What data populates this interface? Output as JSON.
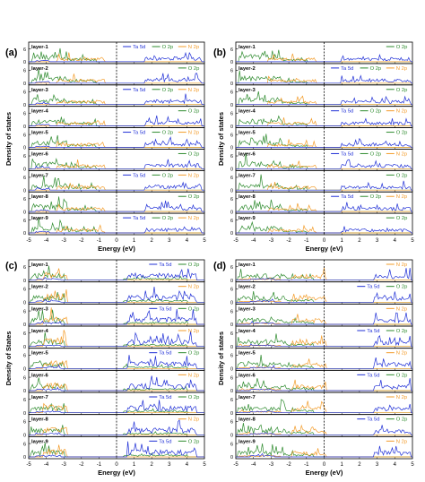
{
  "figure": {
    "description_panels": [
      "(a)",
      "(b)",
      "(c)",
      "(d)"
    ]
  },
  "colors": {
    "ta5d": "#1f2fd6",
    "o2p": "#2e8b2e",
    "n2p": "#f39c2a",
    "axis": "#000000"
  },
  "chart_data": [
    {
      "type": "line",
      "panel_label": "(a)",
      "xlabel": "Energy (eV)",
      "ylabel": "Density of states",
      "xlim": [
        -5,
        5
      ],
      "xticks": [
        -5,
        -4,
        -3,
        -2,
        -1,
        0,
        1,
        2,
        3,
        4,
        5
      ],
      "yticks_per_layer": [
        0,
        6
      ],
      "fermi_level_dashed": 0,
      "layers": [
        {
          "name": "layer-1",
          "legend": [
            "Ta 5d",
            "O 2p",
            "N 2p"
          ]
        },
        {
          "name": "layer-2",
          "legend": [
            "O 2p"
          ]
        },
        {
          "name": "layer-3",
          "legend": [
            "Ta 5d",
            "O 2p",
            "N 2p"
          ]
        },
        {
          "name": "layer-4",
          "legend": [
            "O 2p"
          ]
        },
        {
          "name": "layer-5",
          "legend": [
            "Ta 5d",
            "O 2p",
            "N 2p"
          ]
        },
        {
          "name": "layer-6",
          "legend": [
            "O 2p"
          ]
        },
        {
          "name": "layer-7",
          "legend": [
            "Ta 5d",
            "O 2p",
            "N 2p"
          ]
        },
        {
          "name": "layer-8",
          "legend": [
            "O 2p"
          ]
        },
        {
          "name": "layer-9",
          "legend": [
            "Ta 5d",
            "O 2p",
            "N 2p"
          ]
        }
      ]
    },
    {
      "type": "line",
      "panel_label": "(b)",
      "xlabel": "Energy (eV)",
      "ylabel": "Density of states",
      "xlim": [
        -5,
        5
      ],
      "xticks": [
        -5,
        -4,
        -3,
        -2,
        -1,
        0,
        1,
        2,
        3,
        4,
        5
      ],
      "yticks_per_layer": [
        0,
        6
      ],
      "fermi_level_dashed": 0,
      "layers": [
        {
          "name": "layer-1",
          "legend": [
            "O 2p"
          ]
        },
        {
          "name": "layer-2",
          "legend": [
            "Ta 5d",
            "O 2p",
            "N 2p"
          ]
        },
        {
          "name": "layer-3",
          "legend": [
            "O 2p"
          ]
        },
        {
          "name": "layer-4",
          "legend": [
            "Ta 5d",
            "O 2p",
            "N 2p"
          ]
        },
        {
          "name": "layer-5",
          "legend": [
            "O 2p"
          ]
        },
        {
          "name": "layer-6",
          "legend": [
            "Ta 5d",
            "O 2p",
            "N 2p"
          ]
        },
        {
          "name": "layer-7",
          "legend": [
            "O 2p"
          ]
        },
        {
          "name": "layer-8",
          "legend": [
            "Ta 5d",
            "O 2p",
            "N 2p"
          ]
        },
        {
          "name": "layer-9",
          "legend": [
            "O 2p"
          ]
        }
      ]
    },
    {
      "type": "line",
      "panel_label": "(c)",
      "xlabel": "Energy (eV)",
      "ylabel": "Density of States",
      "xlim": [
        -5,
        5
      ],
      "xticks": [
        -5,
        -4,
        -3,
        -2,
        -1,
        0,
        1,
        2,
        3,
        4,
        5
      ],
      "yticks_per_layer": [
        0,
        6
      ],
      "fermi_level_dashed": 0,
      "layers": [
        {
          "name": "layer-1",
          "legend": [
            "Ta 5d",
            "O 2p"
          ]
        },
        {
          "name": "layer-2",
          "legend": [
            "N 2p"
          ]
        },
        {
          "name": "layer-3",
          "legend": [
            "Ta 5d",
            "O 2p"
          ]
        },
        {
          "name": "layer-4",
          "legend": [
            "N 2p"
          ]
        },
        {
          "name": "layer-5",
          "legend": [
            "Ta 5d",
            "O 2p"
          ]
        },
        {
          "name": "layer-6",
          "legend": [
            "N 2p"
          ]
        },
        {
          "name": "layer-7",
          "legend": [
            "Ta 5d",
            "O 2p"
          ]
        },
        {
          "name": "layer-8",
          "legend": [
            "N 2p"
          ]
        },
        {
          "name": "layer-9",
          "legend": [
            "Ta 5d",
            "O 2p"
          ]
        }
      ]
    },
    {
      "type": "line",
      "panel_label": "(d)",
      "xlabel": "Energy (eV)",
      "ylabel": "Density of states",
      "xlim": [
        -5,
        5
      ],
      "xticks": [
        -5,
        -4,
        -3,
        -2,
        -1,
        0,
        1,
        2,
        3,
        4,
        5
      ],
      "yticks_per_layer": [
        0,
        6
      ],
      "fermi_level_dashed": 0,
      "layers": [
        {
          "name": "layer-1",
          "legend": [
            "N 2p"
          ]
        },
        {
          "name": "layer-2",
          "legend": [
            "Ta 5d",
            "O 2p"
          ]
        },
        {
          "name": "layer-3",
          "legend": [
            "N 2p"
          ]
        },
        {
          "name": "layer-4",
          "legend": [
            "Ta 5d",
            "O 2p"
          ]
        },
        {
          "name": "layer-5",
          "legend": [
            "N 2p"
          ]
        },
        {
          "name": "layer-6",
          "legend": [
            "Ta 5d",
            "O 2p"
          ]
        },
        {
          "name": "layer-7",
          "legend": [
            "N 2p"
          ]
        },
        {
          "name": "layer-8",
          "legend": [
            "Ta 5d",
            "O 2p"
          ]
        },
        {
          "name": "layer-9",
          "legend": [
            "N 2p"
          ]
        }
      ]
    }
  ]
}
